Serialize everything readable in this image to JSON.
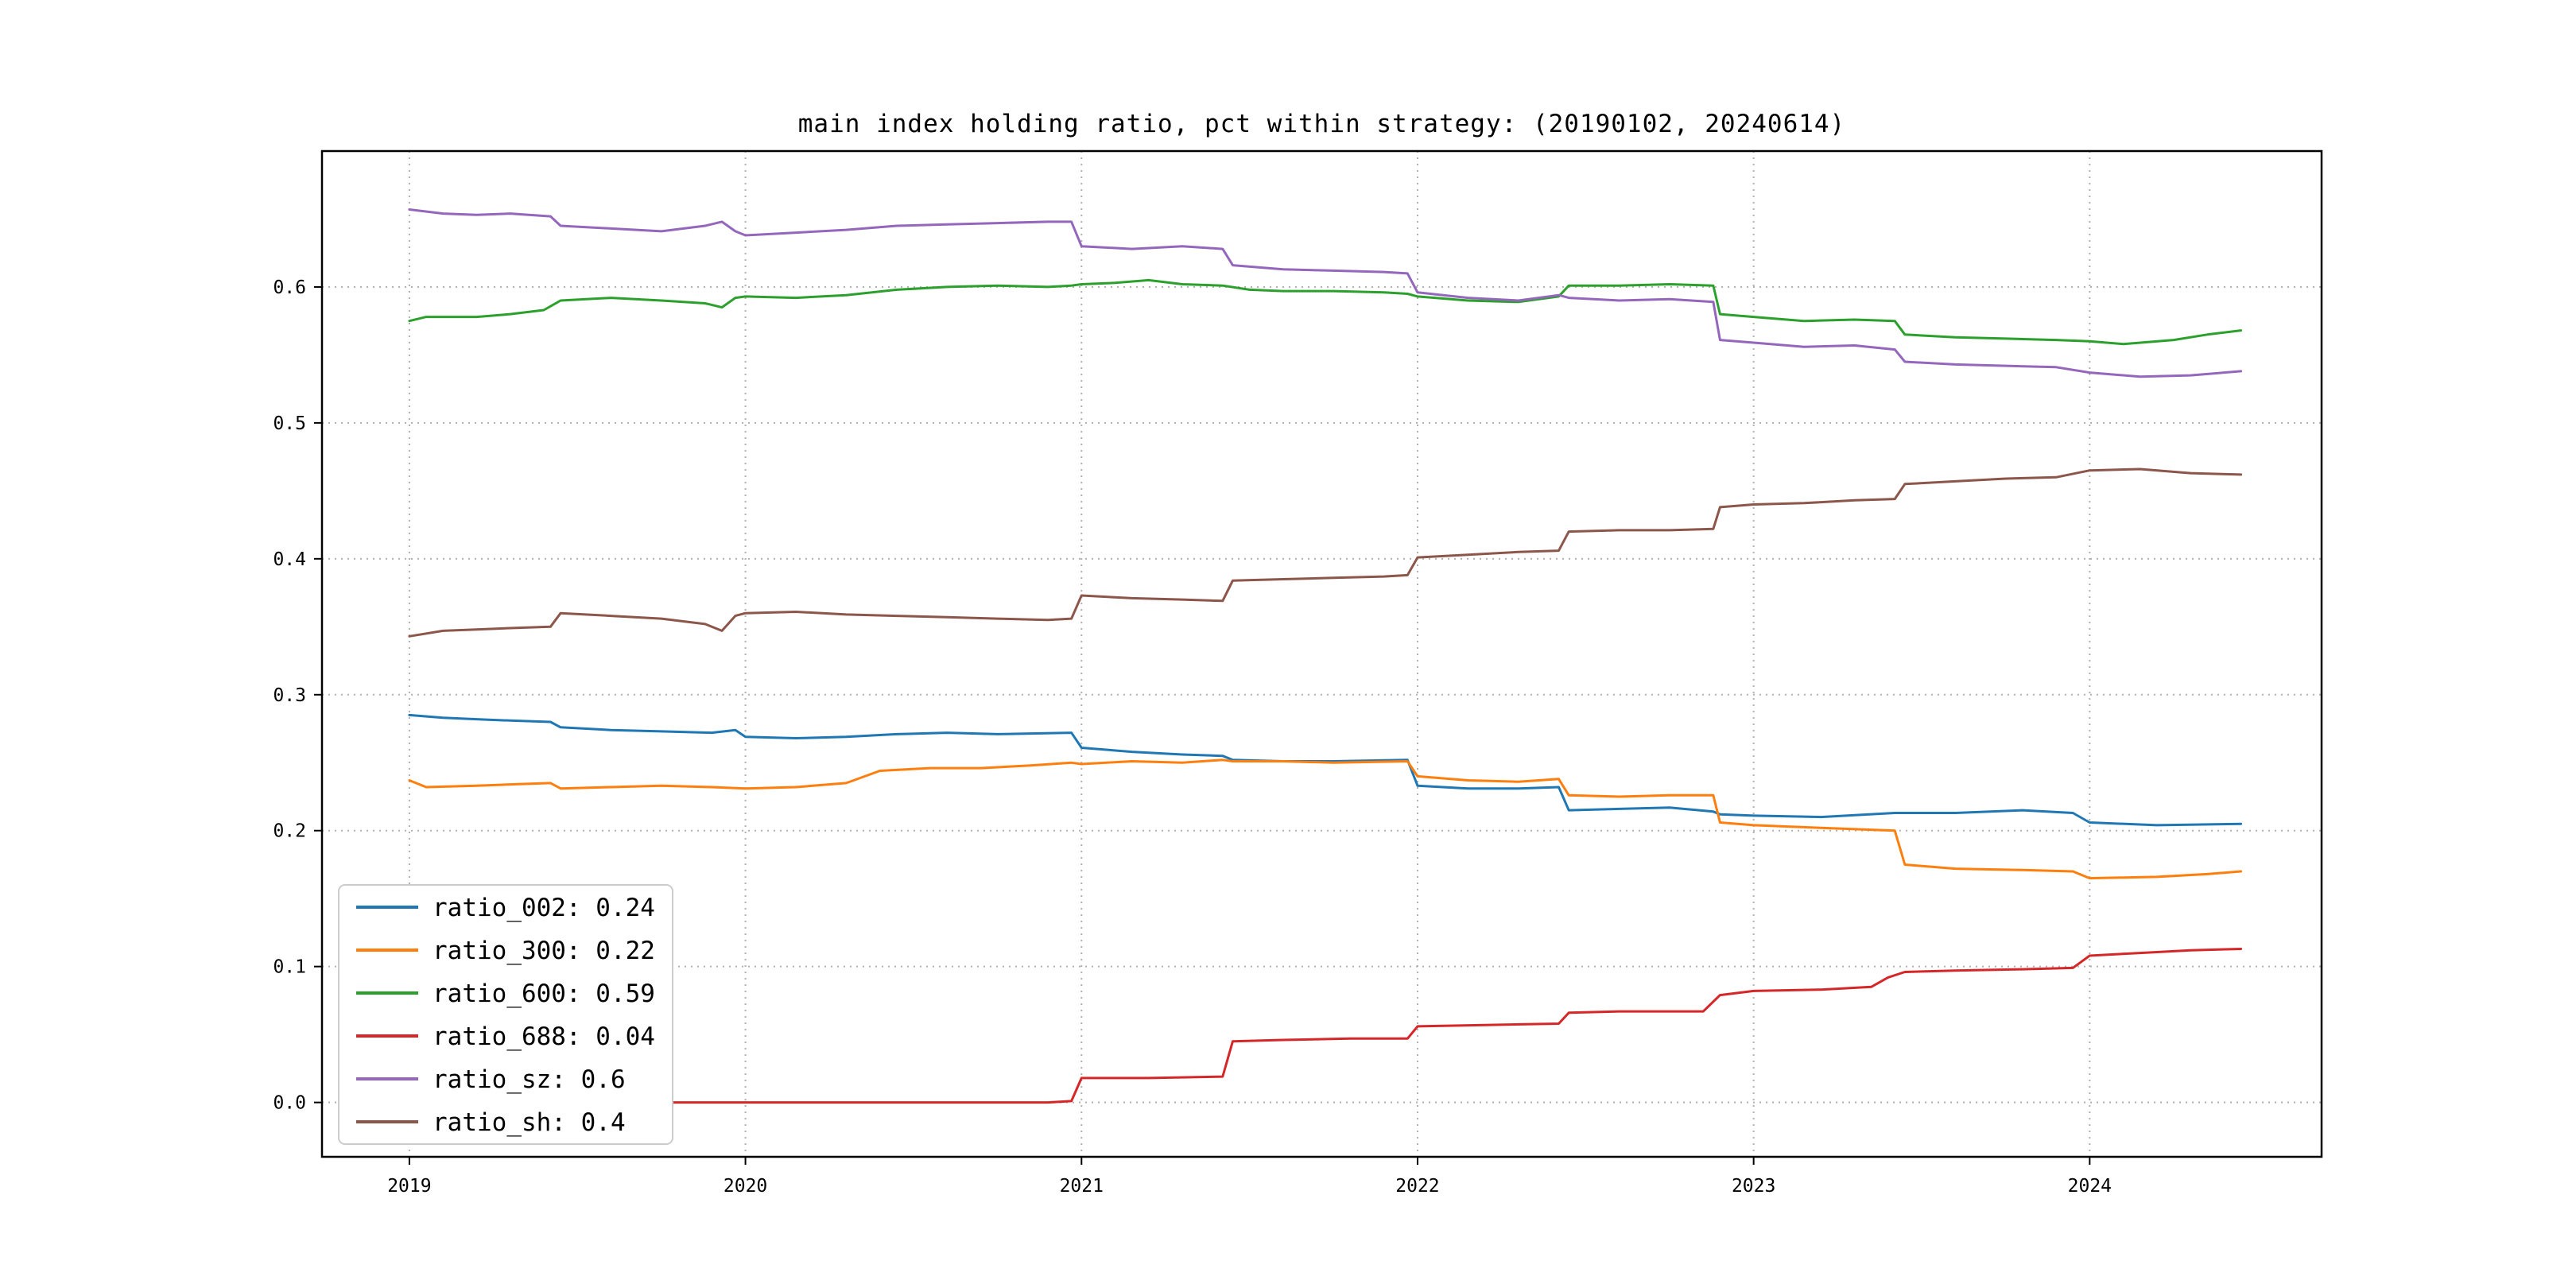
{
  "figure": {
    "background": "#ffffff"
  },
  "chart_data": {
    "type": "line",
    "title": "main index holding ratio, pct within strategy: (20190102, 20240614)",
    "xlabel": "",
    "ylabel": "",
    "xlim": [
      2018.74,
      2024.69
    ],
    "ylim": [
      -0.04,
      0.7
    ],
    "xticks": [
      2019,
      2020,
      2021,
      2022,
      2023,
      2024
    ],
    "xtick_labels": [
      "2019",
      "2020",
      "2021",
      "2022",
      "2023",
      "2024"
    ],
    "yticks": [
      0.0,
      0.1,
      0.2,
      0.3,
      0.4,
      0.5,
      0.6
    ],
    "ytick_labels": [
      "0.0",
      "0.1",
      "0.2",
      "0.3",
      "0.4",
      "0.5",
      "0.6"
    ],
    "grid": true,
    "grid_color": "#b0b0b0",
    "legend_position": "lower left",
    "series": [
      {
        "name": "ratio_002",
        "label": "ratio_002: 0.24",
        "color": "#1f77b4",
        "points": [
          [
            2019.0,
            0.285
          ],
          [
            2019.1,
            0.283
          ],
          [
            2019.2,
            0.282
          ],
          [
            2019.3,
            0.281
          ],
          [
            2019.42,
            0.28
          ],
          [
            2019.45,
            0.276
          ],
          [
            2019.6,
            0.274
          ],
          [
            2019.75,
            0.273
          ],
          [
            2019.9,
            0.272
          ],
          [
            2019.97,
            0.274
          ],
          [
            2020.0,
            0.269
          ],
          [
            2020.15,
            0.268
          ],
          [
            2020.3,
            0.269
          ],
          [
            2020.45,
            0.271
          ],
          [
            2020.6,
            0.272
          ],
          [
            2020.75,
            0.271
          ],
          [
            2020.97,
            0.272
          ],
          [
            2021.0,
            0.261
          ],
          [
            2021.15,
            0.258
          ],
          [
            2021.3,
            0.256
          ],
          [
            2021.42,
            0.255
          ],
          [
            2021.45,
            0.252
          ],
          [
            2021.6,
            0.251
          ],
          [
            2021.75,
            0.251
          ],
          [
            2021.97,
            0.252
          ],
          [
            2022.0,
            0.233
          ],
          [
            2022.15,
            0.231
          ],
          [
            2022.3,
            0.231
          ],
          [
            2022.42,
            0.232
          ],
          [
            2022.45,
            0.215
          ],
          [
            2022.6,
            0.216
          ],
          [
            2022.75,
            0.217
          ],
          [
            2022.88,
            0.214
          ],
          [
            2022.9,
            0.212
          ],
          [
            2023.0,
            0.211
          ],
          [
            2023.2,
            0.21
          ],
          [
            2023.42,
            0.213
          ],
          [
            2023.6,
            0.213
          ],
          [
            2023.8,
            0.215
          ],
          [
            2023.95,
            0.213
          ],
          [
            2024.0,
            0.206
          ],
          [
            2024.2,
            0.204
          ],
          [
            2024.45,
            0.205
          ]
        ]
      },
      {
        "name": "ratio_300",
        "label": "ratio_300: 0.22",
        "color": "#ff7f0e",
        "points": [
          [
            2019.0,
            0.237
          ],
          [
            2019.05,
            0.232
          ],
          [
            2019.2,
            0.233
          ],
          [
            2019.3,
            0.234
          ],
          [
            2019.42,
            0.235
          ],
          [
            2019.45,
            0.231
          ],
          [
            2019.6,
            0.232
          ],
          [
            2019.75,
            0.233
          ],
          [
            2019.9,
            0.232
          ],
          [
            2020.0,
            0.231
          ],
          [
            2020.15,
            0.232
          ],
          [
            2020.3,
            0.235
          ],
          [
            2020.4,
            0.244
          ],
          [
            2020.55,
            0.246
          ],
          [
            2020.7,
            0.246
          ],
          [
            2020.85,
            0.248
          ],
          [
            2020.97,
            0.25
          ],
          [
            2021.0,
            0.249
          ],
          [
            2021.15,
            0.251
          ],
          [
            2021.3,
            0.25
          ],
          [
            2021.42,
            0.252
          ],
          [
            2021.45,
            0.251
          ],
          [
            2021.6,
            0.251
          ],
          [
            2021.75,
            0.25
          ],
          [
            2021.97,
            0.251
          ],
          [
            2022.0,
            0.24
          ],
          [
            2022.15,
            0.237
          ],
          [
            2022.3,
            0.236
          ],
          [
            2022.42,
            0.238
          ],
          [
            2022.45,
            0.226
          ],
          [
            2022.6,
            0.225
          ],
          [
            2022.75,
            0.226
          ],
          [
            2022.88,
            0.226
          ],
          [
            2022.9,
            0.206
          ],
          [
            2023.0,
            0.204
          ],
          [
            2023.2,
            0.202
          ],
          [
            2023.42,
            0.2
          ],
          [
            2023.45,
            0.175
          ],
          [
            2023.6,
            0.172
          ],
          [
            2023.8,
            0.171
          ],
          [
            2023.95,
            0.17
          ],
          [
            2024.0,
            0.165
          ],
          [
            2024.2,
            0.166
          ],
          [
            2024.35,
            0.168
          ],
          [
            2024.45,
            0.17
          ]
        ]
      },
      {
        "name": "ratio_600",
        "label": "ratio_600: 0.59",
        "color": "#2ca02c",
        "points": [
          [
            2019.0,
            0.575
          ],
          [
            2019.05,
            0.578
          ],
          [
            2019.2,
            0.578
          ],
          [
            2019.3,
            0.58
          ],
          [
            2019.4,
            0.583
          ],
          [
            2019.45,
            0.59
          ],
          [
            2019.6,
            0.592
          ],
          [
            2019.75,
            0.59
          ],
          [
            2019.88,
            0.588
          ],
          [
            2019.93,
            0.585
          ],
          [
            2019.97,
            0.592
          ],
          [
            2020.0,
            0.593
          ],
          [
            2020.15,
            0.592
          ],
          [
            2020.3,
            0.594
          ],
          [
            2020.45,
            0.598
          ],
          [
            2020.6,
            0.6
          ],
          [
            2020.75,
            0.601
          ],
          [
            2020.9,
            0.6
          ],
          [
            2020.97,
            0.601
          ],
          [
            2021.0,
            0.602
          ],
          [
            2021.1,
            0.603
          ],
          [
            2021.2,
            0.605
          ],
          [
            2021.3,
            0.602
          ],
          [
            2021.42,
            0.601
          ],
          [
            2021.5,
            0.598
          ],
          [
            2021.6,
            0.597
          ],
          [
            2021.75,
            0.597
          ],
          [
            2021.9,
            0.596
          ],
          [
            2021.97,
            0.595
          ],
          [
            2022.0,
            0.593
          ],
          [
            2022.15,
            0.59
          ],
          [
            2022.3,
            0.589
          ],
          [
            2022.42,
            0.593
          ],
          [
            2022.45,
            0.601
          ],
          [
            2022.6,
            0.601
          ],
          [
            2022.75,
            0.602
          ],
          [
            2022.88,
            0.601
          ],
          [
            2022.9,
            0.58
          ],
          [
            2023.0,
            0.578
          ],
          [
            2023.15,
            0.575
          ],
          [
            2023.3,
            0.576
          ],
          [
            2023.42,
            0.575
          ],
          [
            2023.45,
            0.565
          ],
          [
            2023.6,
            0.563
          ],
          [
            2023.75,
            0.562
          ],
          [
            2023.9,
            0.561
          ],
          [
            2024.0,
            0.56
          ],
          [
            2024.1,
            0.558
          ],
          [
            2024.25,
            0.561
          ],
          [
            2024.35,
            0.565
          ],
          [
            2024.45,
            0.568
          ]
        ]
      },
      {
        "name": "ratio_688",
        "label": "ratio_688: 0.04",
        "color": "#d62728",
        "points": [
          [
            2019.0,
            0.0
          ],
          [
            2019.5,
            0.0
          ],
          [
            2020.0,
            0.0
          ],
          [
            2020.5,
            0.0
          ],
          [
            2020.9,
            0.0
          ],
          [
            2020.97,
            0.001
          ],
          [
            2021.0,
            0.018
          ],
          [
            2021.2,
            0.018
          ],
          [
            2021.42,
            0.019
          ],
          [
            2021.45,
            0.045
          ],
          [
            2021.6,
            0.046
          ],
          [
            2021.8,
            0.047
          ],
          [
            2021.97,
            0.047
          ],
          [
            2022.0,
            0.056
          ],
          [
            2022.2,
            0.057
          ],
          [
            2022.42,
            0.058
          ],
          [
            2022.45,
            0.066
          ],
          [
            2022.6,
            0.067
          ],
          [
            2022.85,
            0.067
          ],
          [
            2022.9,
            0.079
          ],
          [
            2023.0,
            0.082
          ],
          [
            2023.2,
            0.083
          ],
          [
            2023.35,
            0.085
          ],
          [
            2023.4,
            0.092
          ],
          [
            2023.45,
            0.096
          ],
          [
            2023.6,
            0.097
          ],
          [
            2023.8,
            0.098
          ],
          [
            2023.95,
            0.099
          ],
          [
            2024.0,
            0.108
          ],
          [
            2024.15,
            0.11
          ],
          [
            2024.3,
            0.112
          ],
          [
            2024.45,
            0.113
          ]
        ]
      },
      {
        "name": "ratio_sz",
        "label": "ratio_sz: 0.6",
        "color": "#9467bd",
        "points": [
          [
            2019.0,
            0.657
          ],
          [
            2019.1,
            0.654
          ],
          [
            2019.2,
            0.653
          ],
          [
            2019.3,
            0.654
          ],
          [
            2019.42,
            0.652
          ],
          [
            2019.45,
            0.645
          ],
          [
            2019.6,
            0.643
          ],
          [
            2019.75,
            0.641
          ],
          [
            2019.88,
            0.645
          ],
          [
            2019.93,
            0.648
          ],
          [
            2019.97,
            0.641
          ],
          [
            2020.0,
            0.638
          ],
          [
            2020.15,
            0.64
          ],
          [
            2020.3,
            0.642
          ],
          [
            2020.45,
            0.645
          ],
          [
            2020.6,
            0.646
          ],
          [
            2020.75,
            0.647
          ],
          [
            2020.9,
            0.648
          ],
          [
            2020.97,
            0.648
          ],
          [
            2021.0,
            0.63
          ],
          [
            2021.15,
            0.628
          ],
          [
            2021.3,
            0.63
          ],
          [
            2021.42,
            0.628
          ],
          [
            2021.45,
            0.616
          ],
          [
            2021.6,
            0.613
          ],
          [
            2021.75,
            0.612
          ],
          [
            2021.9,
            0.611
          ],
          [
            2021.97,
            0.61
          ],
          [
            2022.0,
            0.596
          ],
          [
            2022.15,
            0.592
          ],
          [
            2022.3,
            0.59
          ],
          [
            2022.42,
            0.594
          ],
          [
            2022.45,
            0.592
          ],
          [
            2022.6,
            0.59
          ],
          [
            2022.75,
            0.591
          ],
          [
            2022.88,
            0.589
          ],
          [
            2022.9,
            0.561
          ],
          [
            2023.0,
            0.559
          ],
          [
            2023.15,
            0.556
          ],
          [
            2023.3,
            0.557
          ],
          [
            2023.42,
            0.554
          ],
          [
            2023.45,
            0.545
          ],
          [
            2023.6,
            0.543
          ],
          [
            2023.75,
            0.542
          ],
          [
            2023.9,
            0.541
          ],
          [
            2024.0,
            0.537
          ],
          [
            2024.15,
            0.534
          ],
          [
            2024.3,
            0.535
          ],
          [
            2024.45,
            0.538
          ]
        ]
      },
      {
        "name": "ratio_sh",
        "label": "ratio_sh: 0.4",
        "color": "#8c564b",
        "points": [
          [
            2019.0,
            0.343
          ],
          [
            2019.1,
            0.347
          ],
          [
            2019.2,
            0.348
          ],
          [
            2019.3,
            0.349
          ],
          [
            2019.42,
            0.35
          ],
          [
            2019.45,
            0.36
          ],
          [
            2019.6,
            0.358
          ],
          [
            2019.75,
            0.356
          ],
          [
            2019.88,
            0.352
          ],
          [
            2019.93,
            0.347
          ],
          [
            2019.97,
            0.358
          ],
          [
            2020.0,
            0.36
          ],
          [
            2020.15,
            0.361
          ],
          [
            2020.3,
            0.359
          ],
          [
            2020.45,
            0.358
          ],
          [
            2020.6,
            0.357
          ],
          [
            2020.75,
            0.356
          ],
          [
            2020.9,
            0.355
          ],
          [
            2020.97,
            0.356
          ],
          [
            2021.0,
            0.373
          ],
          [
            2021.15,
            0.371
          ],
          [
            2021.3,
            0.37
          ],
          [
            2021.42,
            0.369
          ],
          [
            2021.45,
            0.384
          ],
          [
            2021.6,
            0.385
          ],
          [
            2021.75,
            0.386
          ],
          [
            2021.9,
            0.387
          ],
          [
            2021.97,
            0.388
          ],
          [
            2022.0,
            0.401
          ],
          [
            2022.15,
            0.403
          ],
          [
            2022.3,
            0.405
          ],
          [
            2022.42,
            0.406
          ],
          [
            2022.45,
            0.42
          ],
          [
            2022.6,
            0.421
          ],
          [
            2022.75,
            0.421
          ],
          [
            2022.88,
            0.422
          ],
          [
            2022.9,
            0.438
          ],
          [
            2023.0,
            0.44
          ],
          [
            2023.15,
            0.441
          ],
          [
            2023.3,
            0.443
          ],
          [
            2023.42,
            0.444
          ],
          [
            2023.45,
            0.455
          ],
          [
            2023.6,
            0.457
          ],
          [
            2023.75,
            0.459
          ],
          [
            2023.9,
            0.46
          ],
          [
            2024.0,
            0.465
          ],
          [
            2024.15,
            0.466
          ],
          [
            2024.3,
            0.463
          ],
          [
            2024.45,
            0.462
          ]
        ]
      }
    ]
  }
}
